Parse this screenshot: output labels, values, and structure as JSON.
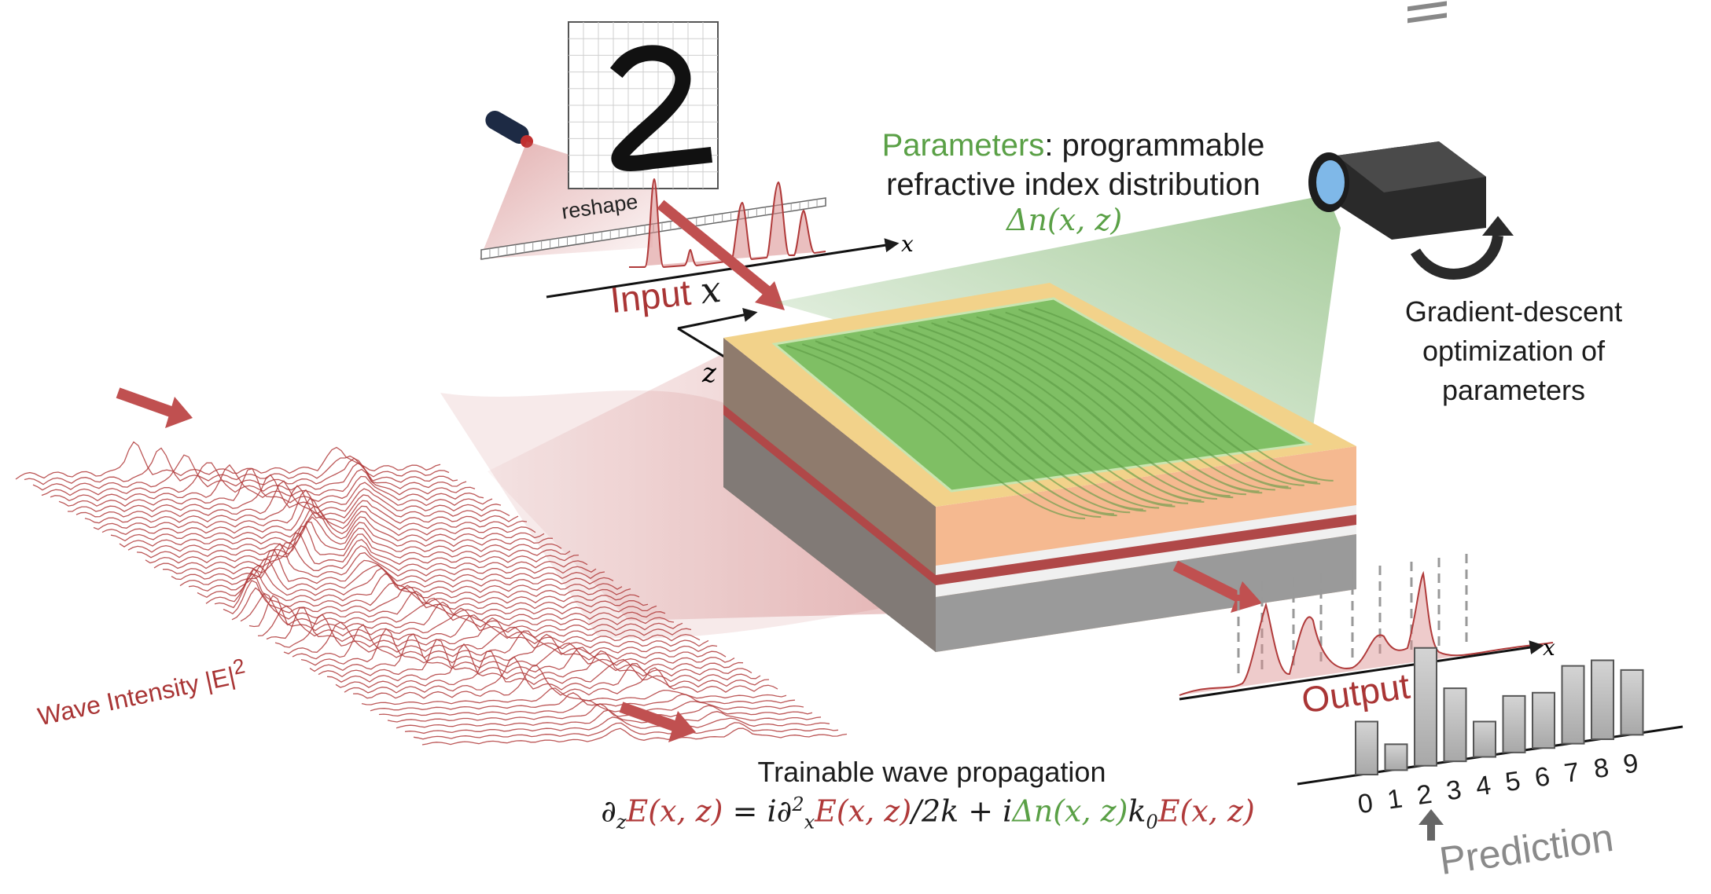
{
  "labels": {
    "parameters_word": "Parameters",
    "parameters_rest": ": programmable",
    "parameters_line2": "refractive index distribution",
    "delta_n": "Δn(x, z)",
    "gradient_line1": "Gradient-descent",
    "gradient_line2": "optimization of",
    "gradient_line3": "parameters",
    "reshape": "reshape",
    "input": "Input",
    "input_axis": "x",
    "x_axis": "x",
    "z_axis": "z",
    "output": "Output",
    "output_axis": "x",
    "prediction": "Prediction",
    "wave_intensity": "Wave Intensity |E|",
    "wave_intensity_power": "2",
    "trainable": "Trainable wave propagation",
    "eq_dz": "∂",
    "eq_dz_sub": "z",
    "eq_E1": "E(x, z)",
    "eq_eq": " = i∂",
    "eq_dx_sup": "2",
    "eq_dx_sub": "x",
    "eq_E2": "E(x, z)",
    "eq_over": "/2k + i",
    "eq_dn": "Δn(x, z)",
    "eq_k": "k",
    "eq_k_sub": "0",
    "eq_E3": "E(x, z)"
  },
  "digit_ticks": [
    "0",
    "1",
    "2",
    "3",
    "4",
    "5",
    "6",
    "7",
    "8",
    "9"
  ],
  "prediction_bars": [
    0.45,
    0.22,
    1.0,
    0.62,
    0.3,
    0.48,
    0.47,
    0.66,
    0.67,
    0.55
  ],
  "predicted_digit": "2",
  "colors": {
    "wave_red": "#b03a3a",
    "param_green": "#5aa046",
    "bar_gray": "#b9b9b9",
    "text": "#1c1c1c"
  }
}
